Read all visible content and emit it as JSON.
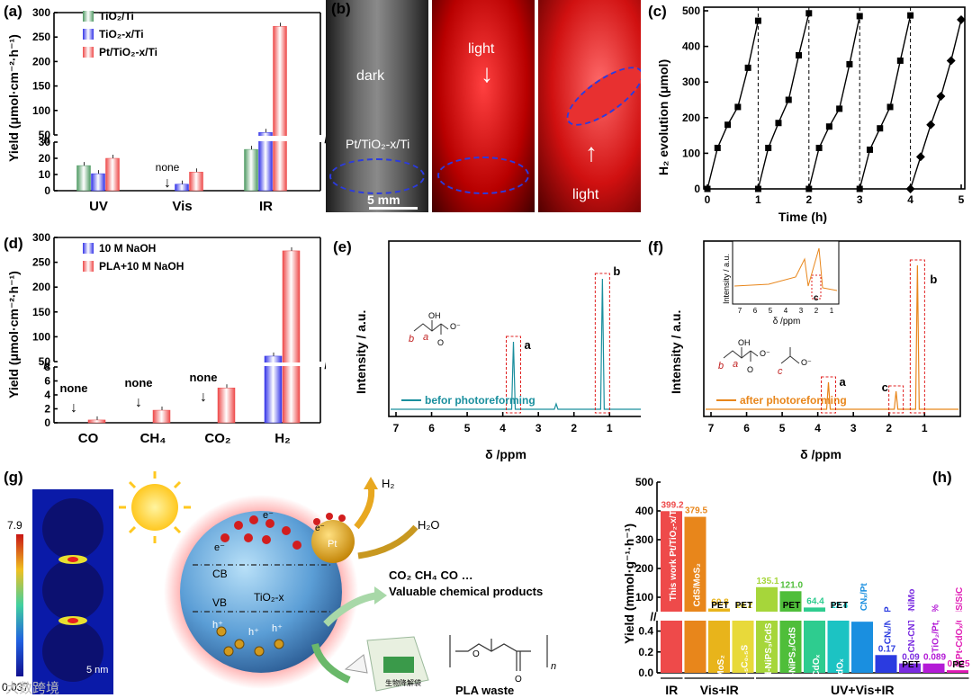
{
  "panel_labels": {
    "a": "(a)",
    "b": "(b)",
    "c": "(c)",
    "d": "(d)",
    "e": "(e)",
    "f": "(f)",
    "g": "(g)",
    "h": "(h)"
  },
  "colors": {
    "green": "#4f9a63",
    "blue": "#3434e8",
    "red": "#ee4a4a",
    "teal": "#1a8f9e",
    "orange": "#e8861b"
  },
  "watermark": "大数跨境",
  "chart_data": [
    {
      "id": "a",
      "type": "bar",
      "title": "",
      "ylabel": "Yield (μmol·cm⁻²·h⁻¹)",
      "categories": [
        "UV",
        "Vis",
        "IR"
      ],
      "series": [
        {
          "name": "TiO2/Ti",
          "values": [
            15.5,
            0,
            25.5
          ]
        },
        {
          "name": "TiO2-x/Ti",
          "values": [
            10.5,
            4,
            55
          ]
        },
        {
          "name": "Pt/TiO2-x/Ti",
          "values": [
            20,
            11.5,
            272
          ]
        }
      ],
      "legend": [
        "TiO₂/Ti",
        "TiO₂-x/Ti",
        "Pt/TiO₂-x/Ti"
      ],
      "yticks_low": [
        "0",
        "10",
        "20",
        "30"
      ],
      "yticks_high": [
        "50",
        "100",
        "150",
        "200",
        "250",
        "300"
      ],
      "annotation": "none"
    },
    {
      "id": "c",
      "type": "line",
      "xlabel": "Time (h)",
      "ylabel": "H₂ evolution (μmol)",
      "xlim": [
        0,
        5
      ],
      "ylim": [
        0,
        500
      ],
      "xticks": [
        "0",
        "1",
        "2",
        "3",
        "4",
        "5"
      ],
      "yticks": [
        "0",
        "100",
        "200",
        "300",
        "400",
        "500"
      ],
      "cycles": [
        {
          "x": [
            0,
            0.2,
            0.4,
            0.6,
            0.8,
            1.0
          ],
          "y": [
            0,
            115,
            180,
            230,
            340,
            472
          ]
        },
        {
          "x": [
            1.0,
            1.2,
            1.4,
            1.6,
            1.8,
            2.0
          ],
          "y": [
            0,
            115,
            185,
            250,
            375,
            493
          ]
        },
        {
          "x": [
            2.0,
            2.2,
            2.4,
            2.6,
            2.8,
            3.0
          ],
          "y": [
            0,
            115,
            175,
            225,
            350,
            485
          ]
        },
        {
          "x": [
            3.0,
            3.2,
            3.4,
            3.6,
            3.8,
            4.0
          ],
          "y": [
            0,
            110,
            170,
            230,
            360,
            487
          ]
        },
        {
          "x": [
            4.0,
            4.2,
            4.4,
            4.6,
            4.8,
            5.0
          ],
          "y": [
            0,
            90,
            180,
            260,
            360,
            475
          ]
        }
      ]
    },
    {
      "id": "d",
      "type": "bar",
      "ylabel": "Yield (μmol·cm⁻²·h⁻¹)",
      "categories": [
        "CO",
        "CH₄",
        "CO₂",
        "H₂"
      ],
      "series": [
        {
          "name": "10 M NaOH",
          "values": [
            0,
            0,
            0,
            61
          ]
        },
        {
          "name": "PLA+10 M NaOH",
          "values": [
            0.4,
            1.8,
            5,
            273
          ]
        }
      ],
      "legend": [
        "10 M NaOH",
        "PLA+10 M NaOH"
      ],
      "yticks_low": [
        "0",
        "2",
        "4",
        "6",
        "8"
      ],
      "yticks_high": [
        "50",
        "100",
        "150",
        "200",
        "250",
        "300"
      ],
      "annotation": "none"
    },
    {
      "id": "e",
      "type": "line",
      "xlabel": "δ /ppm",
      "ylabel": "Intensity / a.u.",
      "xticks": [
        "7",
        "6",
        "5",
        "4",
        "3",
        "2",
        "1"
      ],
      "legend": "befor photoreforming",
      "peaks": [
        {
          "label": "a",
          "ppm": 3.7
        },
        {
          "label": "b",
          "ppm": 1.2
        }
      ]
    },
    {
      "id": "f",
      "type": "line",
      "xlabel": "δ /ppm",
      "ylabel": "Intensity / a.u.",
      "xticks": [
        "7",
        "6",
        "5",
        "4",
        "3",
        "2",
        "1"
      ],
      "legend": "after photoreforming",
      "peaks": [
        {
          "label": "a",
          "ppm": 3.7
        },
        {
          "label": "b",
          "ppm": 1.2
        },
        {
          "label": "c",
          "ppm": 1.8
        }
      ],
      "inset": {
        "xlabel": "δ /ppm",
        "ylabel": "Intensity / a.u.",
        "xticks": [
          "7",
          "6",
          "5",
          "4",
          "3",
          "2",
          "1"
        ],
        "peak": "c"
      }
    },
    {
      "id": "h",
      "type": "bar",
      "ylabel": "Yield (mmol·g⁻¹·h⁻¹)",
      "yticks_low": [
        "0.0",
        "0.2",
        "0.4"
      ],
      "yticks_high": [
        "100",
        "200",
        "300",
        "400",
        "500"
      ],
      "groups": [
        "IR",
        "Vis+IR",
        "UV+Vis+IR"
      ],
      "bars": [
        {
          "name": "This work Pt/TiO₂-x/Ti",
          "value": "399.2",
          "num": 399.2,
          "color": "#ee4a4a",
          "tag": ""
        },
        {
          "name": "CdS/MoS₂",
          "value": "379.5",
          "num": 379.5,
          "color": "#e8861b",
          "tag": ""
        },
        {
          "name": "CdS/MoS₂",
          "value": "60.8",
          "num": 60.8,
          "color": "#e8b41b",
          "tag": "PET"
        },
        {
          "name": "M-2/7₀.₅C₀.₅S",
          "value": "14.2",
          "num": 14.2,
          "color": "#e8d93a",
          "tag": "PET"
        },
        {
          "name": "d-NiPS₃/CdS",
          "value": "135.1",
          "num": 135.1,
          "color": "#a6d63a",
          "tag": ""
        },
        {
          "name": "d-NiPS₃/CdS",
          "value": "121.0",
          "num": 121.0,
          "color": "#4fbe3a",
          "tag": "PET"
        },
        {
          "name": "CdS/CdOₓ",
          "value": "64.4",
          "num": 64.4,
          "color": "#2ecc8f",
          "tag": ""
        },
        {
          "name": "CdS/CdOₓ",
          "value": "12.4",
          "num": 12.4,
          "color": "#1cc3c3",
          "tag": "PET"
        },
        {
          "name": "CNₓ/Pt",
          "value": "0.49",
          "num": 0.49,
          "color": "#1a8fe0",
          "tag": ""
        },
        {
          "name": "CNₓ/Ni₂P",
          "value": "0.17",
          "num": 0.17,
          "color": "#2b3be0",
          "tag": ""
        },
        {
          "name": "CN-CNTs-NiMo",
          "value": "0.09",
          "num": 0.09,
          "color": "#7a2be0",
          "tag": "PET"
        },
        {
          "name": "TiO₂/Pt, 5%",
          "value": "0.089",
          "num": 0.089,
          "color": "#b31bd6",
          "tag": ""
        },
        {
          "name": "Pt-CdOₓ/CdS/SiC",
          "value": "0.025",
          "num": 0.025,
          "color": "#e01bb5",
          "tag": "PE"
        }
      ]
    }
  ],
  "photos": {
    "dark_label": "dark",
    "sample_label": "Pt/TiO₂-x/Ti",
    "scale_bar": "5 mm",
    "light1": "light",
    "light2": "light"
  },
  "schematic": {
    "colorbar_max": "7.9",
    "colorbar_min": "0.037",
    "scale": "5 nm",
    "cb": "CB",
    "vb": "VB",
    "catalyst": "TiO₂-x",
    "pt": "Pt",
    "electron": "e⁻",
    "hole": "h⁺",
    "h2": "H₂",
    "h2o": "H₂O",
    "gases": "CO₂  CH₄ CO …",
    "products": "Valuable chemical products",
    "pla_waste": "PLA waste",
    "n": "n",
    "bag_text": "生物降解袋"
  }
}
